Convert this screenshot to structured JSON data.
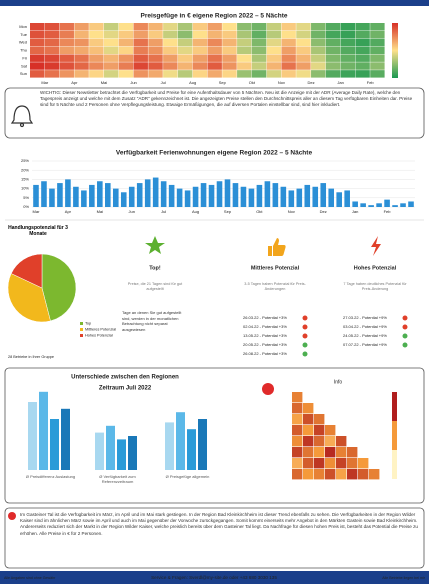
{
  "chart_data": [
    {
      "type": "heatmap",
      "title": "Preisgefüge in € eigene Region 2022 – 5 Nächte",
      "rows": [
        "Mon",
        "Tue",
        "Wed",
        "Thu",
        "Fri",
        "Sat",
        "Sun"
      ],
      "categories": [
        "Mar",
        null,
        "Apr",
        null,
        "Mai",
        null,
        "Jun",
        null,
        "Jul",
        null,
        "Aug",
        null,
        "Sep",
        null,
        "Okt",
        null,
        "Nov",
        null,
        "Dez",
        null,
        "Jan",
        null,
        "Feb",
        null
      ],
      "colorscale": [
        "#1a9850",
        "#fee08b",
        "#d73027"
      ],
      "vlim": [
        60,
        220
      ],
      "values": [
        [
          210,
          205,
          190,
          170,
          150,
          120,
          140,
          180,
          160,
          130,
          110,
          150,
          170,
          140,
          100,
          90,
          120,
          150,
          130,
          95,
          80,
          70,
          75,
          85
        ],
        [
          205,
          200,
          185,
          160,
          140,
          130,
          150,
          170,
          150,
          120,
          100,
          140,
          160,
          150,
          110,
          85,
          115,
          140,
          125,
          90,
          75,
          70,
          80,
          90
        ],
        [
          200,
          195,
          180,
          175,
          150,
          140,
          160,
          190,
          170,
          140,
          120,
          160,
          180,
          160,
          120,
          95,
          130,
          160,
          140,
          100,
          85,
          75,
          70,
          80
        ],
        [
          195,
          190,
          170,
          165,
          155,
          130,
          145,
          185,
          175,
          150,
          130,
          150,
          170,
          150,
          115,
          100,
          140,
          170,
          150,
          110,
          90,
          80,
          75,
          85
        ],
        [
          215,
          210,
          200,
          190,
          170,
          160,
          175,
          200,
          190,
          170,
          150,
          170,
          190,
          170,
          140,
          110,
          150,
          180,
          160,
          120,
          95,
          85,
          80,
          95
        ],
        [
          220,
          215,
          205,
          195,
          180,
          170,
          185,
          210,
          200,
          180,
          160,
          180,
          200,
          175,
          150,
          120,
          160,
          190,
          170,
          130,
          100,
          90,
          85,
          100
        ],
        [
          200,
          190,
          175,
          160,
          145,
          125,
          140,
          175,
          165,
          135,
          115,
          145,
          165,
          145,
          105,
          90,
          125,
          150,
          135,
          100,
          80,
          72,
          70,
          82
        ]
      ]
    },
    {
      "type": "bar",
      "title": "Verfügbarkeit Ferienwohnungen eigene Region 2022 – 5 Nächte",
      "color": "#2b8fd6",
      "categories": [
        "Mar",
        null,
        null,
        null,
        "Apr",
        null,
        null,
        null,
        "Mai",
        null,
        null,
        null,
        "Jun",
        null,
        null,
        null,
        "Jul",
        null,
        null,
        null,
        "Aug",
        null,
        null,
        null,
        "Sep",
        null,
        null,
        null,
        "Okt",
        null,
        null,
        null,
        "Nov",
        null,
        null,
        null,
        "Dez",
        null,
        null,
        null,
        "Jan",
        null,
        null,
        null,
        "Feb",
        null,
        null,
        null
      ],
      "values": [
        12,
        14,
        10,
        13,
        15,
        11,
        9,
        12,
        14,
        13,
        10,
        8,
        11,
        13,
        15,
        16,
        14,
        12,
        10,
        9,
        11,
        13,
        12,
        14,
        15,
        13,
        11,
        10,
        12,
        14,
        13,
        11,
        9,
        10,
        12,
        11,
        13,
        10,
        8,
        9,
        3,
        2,
        1,
        2,
        4,
        1,
        2,
        3
      ],
      "ylim": [
        0,
        25
      ],
      "yticks": [
        {
          "value": 0,
          "label": "0%"
        },
        {
          "value": 5,
          "label": "5%"
        },
        {
          "value": 10,
          "label": "10%"
        },
        {
          "value": 15,
          "label": "15%"
        },
        {
          "value": 20,
          "label": "20%"
        },
        {
          "value": 25,
          "label": "25%"
        }
      ],
      "grid": true
    },
    {
      "type": "pie",
      "title": "Handlungspotenzial für 3 Monate",
      "caption": "28 Betriebe in Ihrer Gruppe",
      "series": [
        {
          "name": "Top",
          "color": "#7cb82f",
          "value": 46
        },
        {
          "name": "Mittleres Potenzial",
          "color": "#f2b81c",
          "value": 36
        },
        {
          "name": "Hohes Potenzial",
          "color": "#e0402a",
          "value": 18
        }
      ]
    },
    {
      "type": "grouped-bar",
      "title": "Unterschiede zwischen den Regionen",
      "subtitle": "Zeitraum Juli 2022",
      "colors": [
        "#a8d8f0",
        "#5bb8e8",
        "#2a9bd8",
        "#1a78b8"
      ],
      "ylim": [
        0,
        50
      ],
      "groups": [
        {
          "name": "Ø Preisdifferenz Auslastung",
          "values": [
            40,
            46,
            30,
            36
          ]
        },
        {
          "name": "Ø Verfügbarkeit zum Referenzzeitraum",
          "values": [
            22,
            26,
            18,
            20
          ]
        },
        {
          "name": "Ø Preisgefüge allgemein",
          "values": [
            28,
            34,
            24,
            30
          ]
        }
      ]
    },
    {
      "type": "triangle-heatmap",
      "title": "Info",
      "colorscale": [
        "#fff3c4",
        "#f59a3a",
        "#b01e1e"
      ],
      "vlim": [
        0,
        100
      ],
      "values": [
        [
          60
        ],
        [
          70,
          55
        ],
        [
          45,
          80,
          65
        ],
        [
          75,
          50,
          85,
          60
        ],
        [
          55,
          90,
          70,
          40,
          80
        ],
        [
          85,
          65,
          50,
          95,
          60,
          70
        ],
        [
          40,
          75,
          90,
          55,
          85,
          65,
          50
        ],
        [
          70,
          50,
          60,
          80,
          45,
          90,
          75,
          60
        ]
      ]
    }
  ],
  "notice": "WICHTIG: Dieser Newsletter betrachtet die Verfügbarkeit und Preise für eine Aufenthaltsdauer von 5 Nächten. Neu ist die Anzeige mit der ADR (Average Daily Rate), welche den Tagespreis anzeigt und welche mit dem Zusatz \"ADR\" gekennzeichnet ist. Die angezeigten Preise stellen den Durchschnittspreis aller an diesem Tag verfügbaren Einheiten dar. Preise sind für 5 Nächte und 2 Personen ohne Verpflegungsleistung. Etwaige Ermäßigungen, die auf diversen Portalen einstellbar sind, sind hier inkludiert.",
  "potential": [
    {
      "title": "Top!",
      "desc": "Preise, die 21 Tagen sind für gut aufgestellt",
      "note": "Tage an denen Sie gut aufgestellt sind, werden in der monatlichen Betrachtung nicht separat ausgewiesen",
      "items": []
    },
    {
      "title": "Mittleres Potenzial",
      "desc": "3-5 Tagen haben Potenzial für Preis-Änderungen",
      "items": [
        {
          "text": "26.03.22 - Potential +3%",
          "status": "down"
        },
        {
          "text": "02.04.22 - Potential +3%",
          "status": "down"
        },
        {
          "text": "13.05.22 - Potential +3%",
          "status": "down"
        },
        {
          "text": "20.05.22 - Potential +3%",
          "status": "up"
        },
        {
          "text": "26.08.22 - Potential +3%",
          "status": "up"
        }
      ]
    },
    {
      "title": "Hohes Potenzial",
      "desc": "7 Tage haben deutliches Potenzial für Preis-Änderung",
      "items": [
        {
          "text": "27.03.22 - Potential +9%",
          "status": "down"
        },
        {
          "text": "03.04.22 - Potential +9%",
          "status": "down"
        },
        {
          "text": "24.05.22 - Potential +9%",
          "status": "up"
        },
        {
          "text": "07.07.22 - Potential +9%",
          "status": "up"
        }
      ]
    }
  ],
  "summary": "Im Gasteiner Tal ist die Verfügbarkeit im März, im April und im Mai stark gestiegen. In der Region Bad Kleinkirchheim ist dieser Trend ebenfalls zu sehen. Die Verfügbarkeiten in der Region Wilder Kaiser sind im ähnlichen März sowie im April und auch im Mai gegenüber der Vorwoche zurückgegangen. Somit kommt einerseits mehr Angebot in den Märkten Gastein sowie Bad Kleinkirchheim. Andererseits reduziert sich der Markt in der Region Wilder Kaiser, welche preislich bereits über dem Gasteiner Tal liegt. Da Nachfrage für diesen hohen Preis ist, besteht das Potential die Preise zu erhöhen. Alle Preise in € für 2 Personen.",
  "footer": {
    "left": "Alle Angaben sind ohne Gewähr",
    "center": "Service & Fragen: Sverdl@my-site.de oder +43 680 3030 135",
    "right": "Alle Betriebe liegen bei mir"
  }
}
